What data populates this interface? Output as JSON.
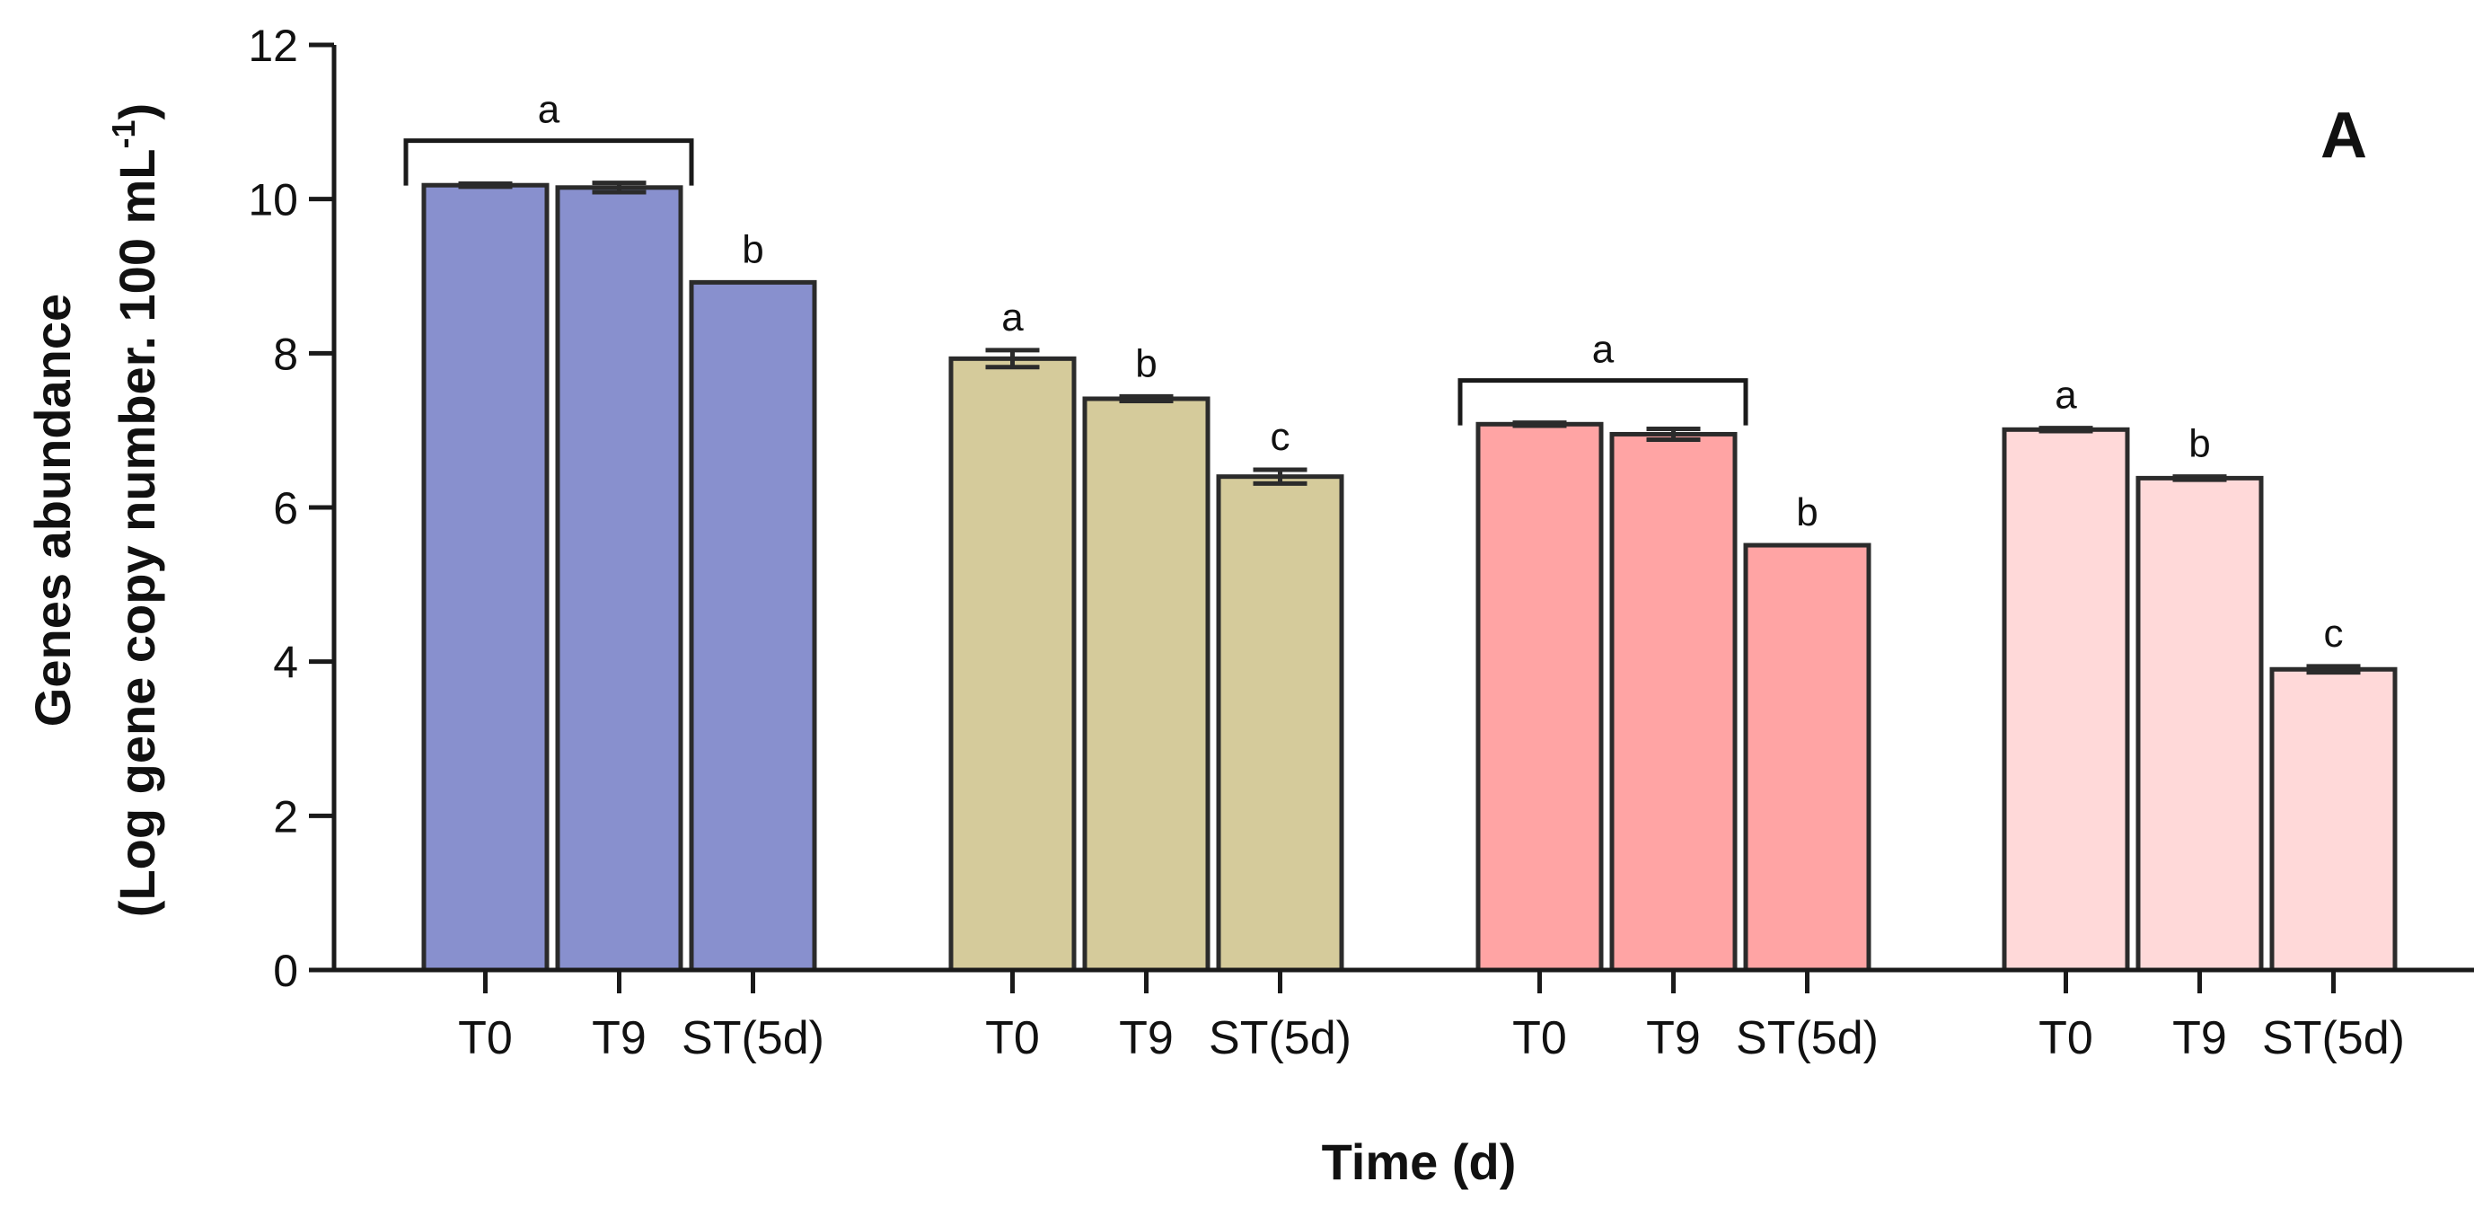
{
  "chart_data": {
    "type": "bar",
    "panel_label": "A",
    "xlabel": "Time (d)",
    "ylabel_line1": "Genes abundance",
    "ylabel_line2_main": "(Log gene copy number. 100 mL",
    "ylabel_line2_sup": "-1",
    "ylabel_line2_end": ")",
    "ylim": [
      0,
      12
    ],
    "yticks": [
      0,
      2,
      4,
      6,
      8,
      10,
      12
    ],
    "categories": [
      "T0",
      "T9",
      "ST(5d)"
    ],
    "groups": [
      {
        "color": "#8890CE",
        "values": [
          10.18,
          10.15,
          8.92
        ],
        "errors": [
          0.02,
          0.06,
          0.0
        ],
        "letters": [
          "a",
          "a",
          "b"
        ],
        "bracket": {
          "from": 0,
          "to": 1,
          "letter": "a"
        }
      },
      {
        "color": "#D5CB9B",
        "values": [
          7.93,
          7.41,
          6.4
        ],
        "errors": [
          0.11,
          0.03,
          0.09
        ],
        "letters": [
          "a",
          "b",
          "c"
        ],
        "bracket": null
      },
      {
        "color": "#FFA4A4",
        "values": [
          7.08,
          6.95,
          5.51
        ],
        "errors": [
          0.02,
          0.07,
          0.0
        ],
        "letters": [
          "a",
          "a",
          "b"
        ],
        "bracket": {
          "from": 0,
          "to": 1,
          "letter": "a"
        }
      },
      {
        "color": "#FFD9D9",
        "values": [
          7.01,
          6.38,
          3.9
        ],
        "errors": [
          0.02,
          0.02,
          0.04
        ],
        "letters": [
          "a",
          "b",
          "c"
        ],
        "bracket": null
      }
    ]
  }
}
